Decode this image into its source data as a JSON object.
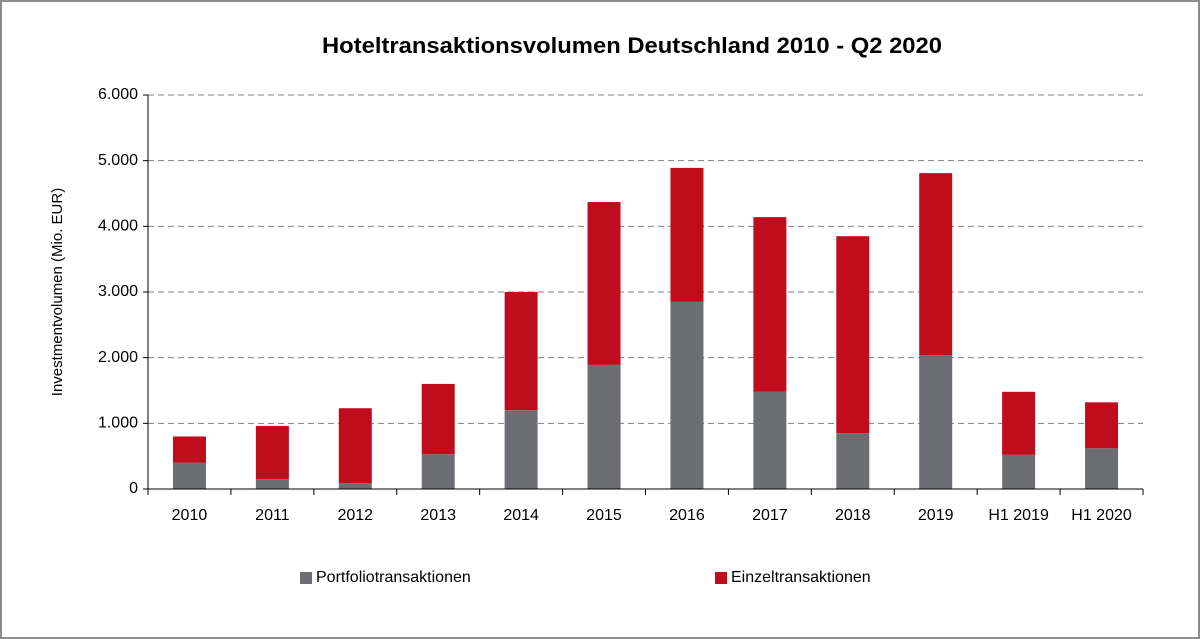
{
  "chart_data": {
    "type": "stacked_bar",
    "title": "Hoteltransaktionsvolumen Deutschland 2010 - Q2 2020",
    "y_label": "Investmentvolumen (Mio. EUR)",
    "categories": [
      "2010",
      "2011",
      "2012",
      "2013",
      "2014",
      "2015",
      "2016",
      "2017",
      "2018",
      "2019",
      "H1 2019",
      "H1 2020"
    ],
    "series": [
      {
        "name": "Portfoliotransaktionen",
        "color": "#6d6e71",
        "values": [
          400,
          150,
          90,
          530,
          1200,
          1890,
          2850,
          1480,
          850,
          2040,
          520,
          620
        ]
      },
      {
        "name": "Einzeltransaktionen",
        "color": "#c00d1e",
        "values": [
          400,
          810,
          1140,
          1070,
          1800,
          2480,
          2040,
          2660,
          3000,
          2770,
          960,
          700
        ]
      }
    ],
    "ylim": [
      0,
      6000
    ],
    "yticks": [
      0,
      {
        "value": 1000,
        "label": "1.000"
      },
      {
        "value": 2000,
        "label": "2.000"
      },
      {
        "value": 3000,
        "label": "3.000"
      },
      {
        "value": 4000,
        "label": "4.000"
      },
      {
        "value": 5000,
        "label": "5.000"
      },
      {
        "value": 6000,
        "label": "6.000"
      }
    ],
    "grid": true
  }
}
